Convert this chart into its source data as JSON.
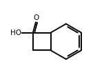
{
  "bg_color": "#ffffff",
  "line_color": "#000000",
  "line_width": 1.4,
  "figsize": [
    1.51,
    1.21
  ],
  "dpi": 100,
  "ho_label": "HO",
  "o_label": "O",
  "label_fontsize": 7.5
}
